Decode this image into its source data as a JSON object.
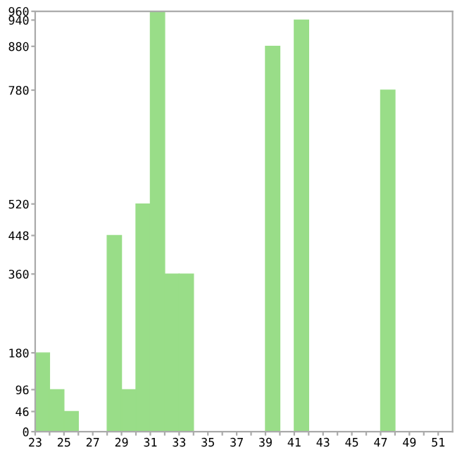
{
  "chart_data": {
    "type": "histogram",
    "bins": [
      23,
      24,
      25,
      26,
      27,
      28,
      29,
      30,
      31,
      32,
      33,
      34,
      35,
      36,
      37,
      38,
      39,
      40,
      41,
      42,
      43,
      44,
      45,
      46,
      47,
      48,
      49,
      50,
      51,
      52
    ],
    "values": [
      180,
      96,
      46,
      0,
      0,
      448,
      96,
      520,
      960,
      360,
      360,
      0,
      0,
      0,
      0,
      0,
      880,
      0,
      940,
      0,
      0,
      0,
      0,
      0,
      780,
      0,
      0,
      0,
      0
    ],
    "color": "#99dd88",
    "xlim": [
      23,
      52
    ],
    "xticks": [
      23,
      {
        "value": 24,
        "label": null
      },
      25,
      {
        "value": 26,
        "label": null
      },
      27,
      {
        "value": 28,
        "label": null
      },
      29,
      {
        "value": 30,
        "label": null
      },
      31,
      {
        "value": 32,
        "label": null
      },
      33,
      {
        "value": 34,
        "label": null
      },
      35,
      {
        "value": 36,
        "label": null
      },
      37,
      {
        "value": 38,
        "label": null
      },
      39,
      {
        "value": 40,
        "label": null
      },
      41,
      {
        "value": 42,
        "label": null
      },
      43,
      {
        "value": 44,
        "label": null
      },
      45,
      {
        "value": 46,
        "label": null
      },
      47,
      {
        "value": 48,
        "label": null
      },
      49,
      {
        "value": 50,
        "label": null
      },
      51
    ],
    "ylim": [
      0,
      960
    ],
    "yticks": [
      0,
      46,
      96,
      180,
      360,
      448,
      520,
      780,
      880,
      940,
      960
    ],
    "grid": false
  }
}
